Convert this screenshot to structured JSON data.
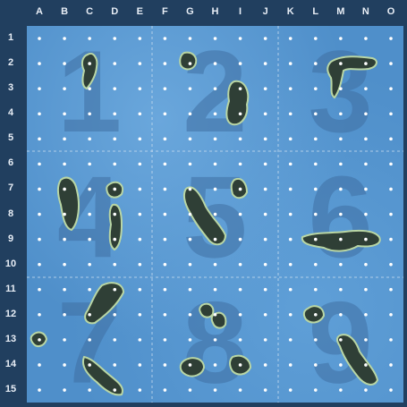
{
  "columns": [
    "A",
    "B",
    "C",
    "D",
    "E",
    "F",
    "G",
    "H",
    "I",
    "J",
    "K",
    "L",
    "M",
    "N",
    "O"
  ],
  "rows": [
    "1",
    "2",
    "3",
    "4",
    "5",
    "6",
    "7",
    "8",
    "9",
    "10",
    "11",
    "12",
    "13",
    "14",
    "15"
  ],
  "sectors": [
    "1",
    "2",
    "3",
    "4",
    "5",
    "6",
    "7",
    "8",
    "9"
  ],
  "colors": {
    "frame": "#213f5f",
    "sea": "#4f8fca",
    "island_land": "#2f3f36",
    "island_shore": "#b9d6a4",
    "sector_number": "#3f6fa3"
  }
}
